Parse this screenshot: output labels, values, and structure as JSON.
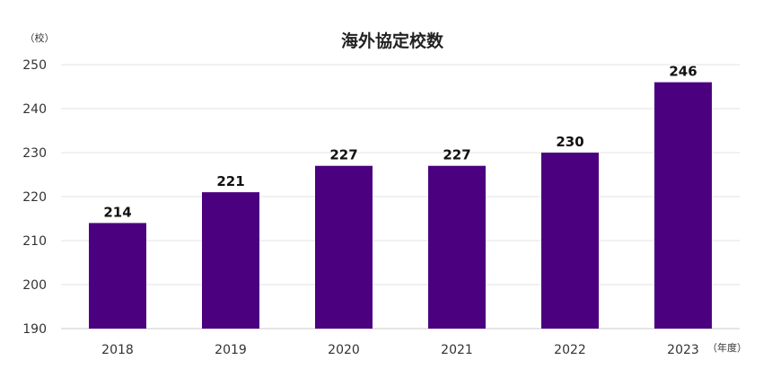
{
  "chart_data": {
    "type": "bar",
    "title": "海外協定校数",
    "y_unit": "（校）",
    "x_unit": "（年度）",
    "categories": [
      "2018",
      "2019",
      "2020",
      "2021",
      "2022",
      "2023"
    ],
    "values": [
      214,
      221,
      227,
      227,
      230,
      246
    ],
    "ylim": [
      190,
      250
    ],
    "yticks": [
      190,
      200,
      210,
      220,
      230,
      240,
      250
    ],
    "grid": true,
    "bar_color": "#4b007f",
    "grid_color": "#e3e3e3",
    "axis_color": "#c8c8c8"
  }
}
